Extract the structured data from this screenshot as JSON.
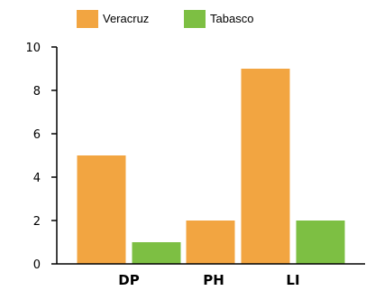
{
  "chart_data": {
    "type": "bar",
    "title": "",
    "xlabel": "",
    "ylabel": "",
    "categories": [
      "DP",
      "PH",
      "LI"
    ],
    "series": [
      {
        "name": "Veracruz",
        "values": [
          5,
          2,
          9
        ],
        "color": "#F2A541"
      },
      {
        "name": "Tabasco",
        "values": [
          1,
          0,
          2
        ],
        "color": "#7DBF43"
      }
    ],
    "ylim": [
      0,
      10
    ],
    "yticks": [
      0,
      2,
      4,
      6,
      8,
      10
    ],
    "grid": false,
    "legend": "top-center"
  }
}
